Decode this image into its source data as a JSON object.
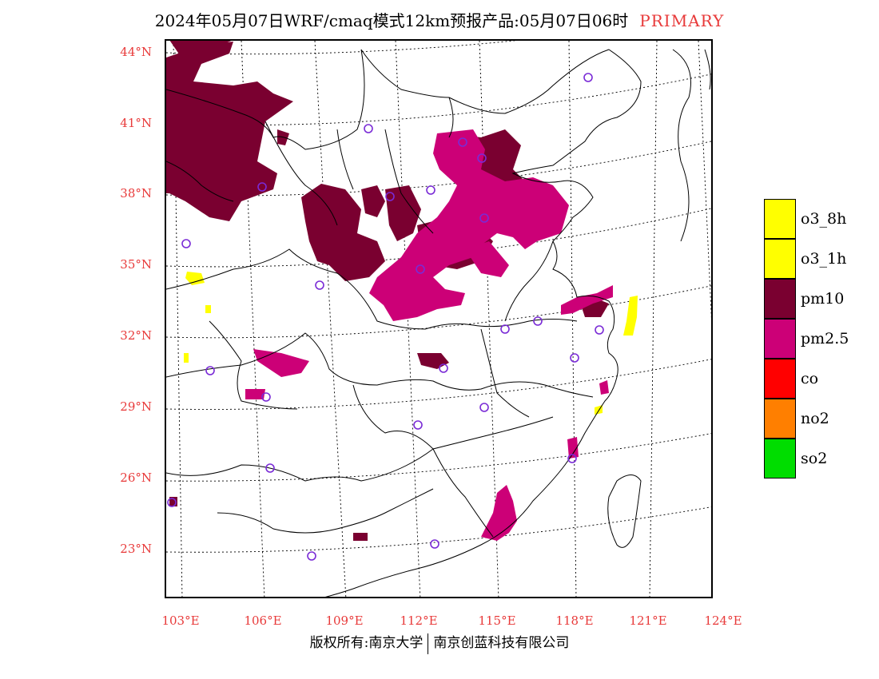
{
  "header": {
    "title": "2024年05月07日WRF/cmaq模式12km预报产品:05月07日06时",
    "mode_label": "PRIMARY"
  },
  "map": {
    "lat_labels": [
      "44°N",
      "41°N",
      "38°N",
      "35°N",
      "32°N",
      "29°N",
      "26°N",
      "23°N"
    ],
    "lon_labels": [
      "103°E",
      "106°E",
      "109°E",
      "112°E",
      "115°E",
      "118°E",
      "121°E",
      "124°E"
    ]
  },
  "legend": {
    "items": [
      {
        "label": "o3_8h",
        "color": "#ffff00"
      },
      {
        "label": "o3_1h",
        "color": "#ffff00"
      },
      {
        "label": "pm10",
        "color": "#7a0030"
      },
      {
        "label": "pm2.5",
        "color": "#cc0077"
      },
      {
        "label": "co",
        "color": "#ff0000"
      },
      {
        "label": "no2",
        "color": "#ff7f00"
      },
      {
        "label": "so2",
        "color": "#00dd00"
      }
    ]
  },
  "footer": {
    "left": "版权所有:南京大学",
    "right": "南京创蓝科技有限公司"
  },
  "colors": {
    "pm10": "#7a0030",
    "pm25": "#cc0077",
    "o3": "#ffff00",
    "station": "#7a2bd6",
    "axis_label": "#e83a3a"
  }
}
